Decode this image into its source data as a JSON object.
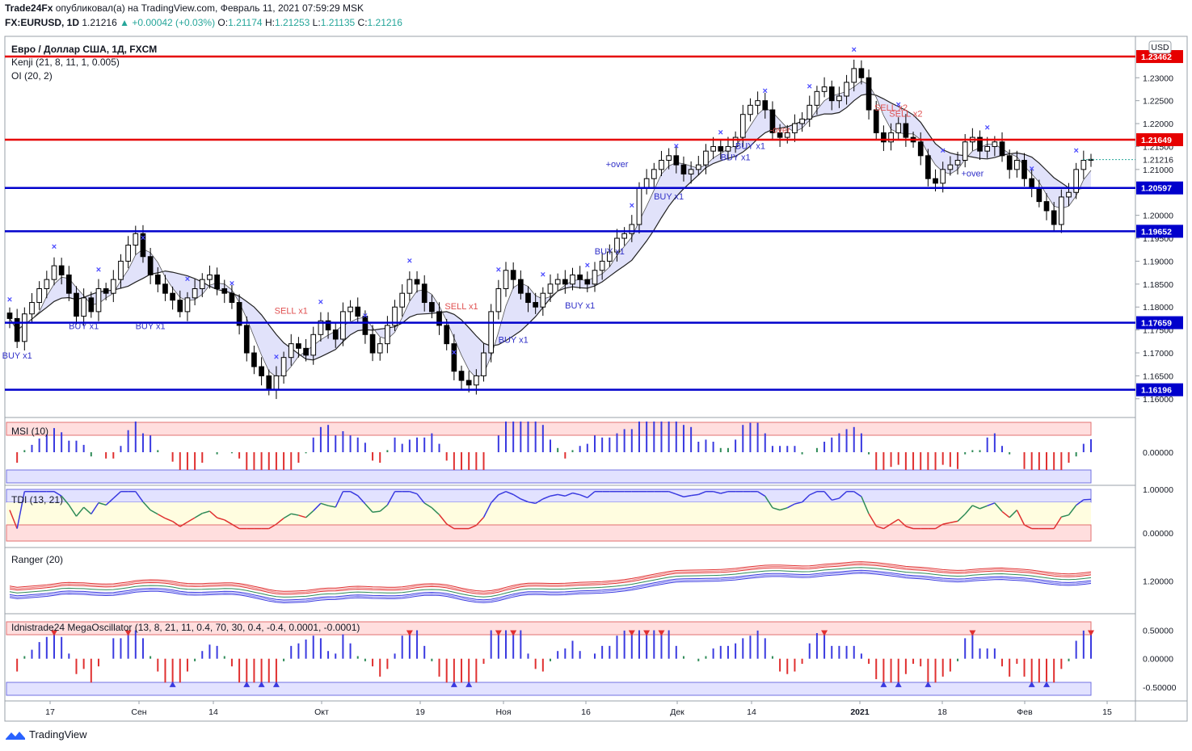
{
  "header": {
    "publisher": "Trade24Fx",
    "published_text": "опубликовал(а) на TradingView.com, Февраль 11, 2021 07:59:29 MSK",
    "symbol": "FX:EURUSD, 1D",
    "last": "1.21216",
    "change": "+0.00042 (+0.03%)",
    "o_label": "O:",
    "o_value": "1.21174",
    "h_label": "H:",
    "h_value": "1.21253",
    "l_label": "L:",
    "l_value": "1.21135",
    "c_label": "C:",
    "c_value": "1.21216"
  },
  "footer": {
    "brand": "TradingView"
  },
  "colors": {
    "red_level": "#e60000",
    "blue_level": "#0000cc",
    "up_text": "#26a69a",
    "marker": "#4b4bff"
  },
  "chart_data": [
    {
      "type": "candlestick",
      "legend": [
        "Евро / Доллар США, 1Д, FXCM",
        "Kenji (21, 8, 11, 1, 0.005)",
        "OI (20, 2)"
      ],
      "currency": "USD",
      "ylim": [
        1.1575,
        1.2385
      ],
      "yticks": [
        "1.23000",
        "1.22500",
        "1.22000",
        "1.21500",
        "1.21000",
        "1.20000",
        "1.19500",
        "1.19000",
        "1.18500",
        "1.18000",
        "1.17500",
        "1.17000",
        "1.16500",
        "1.16000"
      ],
      "x_labels": [
        "17",
        "Сен",
        "14",
        "Окт",
        "19",
        "Ноя",
        "16",
        "Дек",
        "14",
        "2021",
        "18",
        "Фев",
        "15"
      ],
      "last_price": {
        "value": 1.21216,
        "label": "1.21216"
      },
      "levels": [
        {
          "value": 1.23462,
          "label": "1.23462",
          "color": "#e60000"
        },
        {
          "value": 1.21649,
          "label": "1.21649",
          "color": "#e60000"
        },
        {
          "value": 1.20597,
          "label": "1.20597",
          "color": "#0000cc"
        },
        {
          "value": 1.19652,
          "label": "1.19652",
          "color": "#0000cc"
        },
        {
          "value": 1.17659,
          "label": "1.17659",
          "color": "#0000cc"
        },
        {
          "value": 1.16196,
          "label": "1.16196",
          "color": "#0000cc"
        }
      ],
      "closes": [
        1.1775,
        1.1725,
        1.1785,
        1.181,
        1.184,
        1.186,
        1.189,
        1.187,
        1.183,
        1.178,
        1.182,
        1.179,
        1.184,
        1.183,
        1.186,
        1.19,
        1.1935,
        1.196,
        1.191,
        1.187,
        1.185,
        1.183,
        1.1815,
        1.179,
        1.182,
        1.184,
        1.186,
        1.187,
        1.184,
        1.183,
        1.181,
        1.176,
        1.17,
        1.167,
        1.165,
        1.162,
        1.165,
        1.169,
        1.172,
        1.171,
        1.1695,
        1.174,
        1.177,
        1.175,
        1.173,
        1.179,
        1.18,
        1.178,
        1.174,
        1.17,
        1.172,
        1.176,
        1.18,
        1.183,
        1.186,
        1.185,
        1.181,
        1.179,
        1.176,
        1.172,
        1.166,
        1.164,
        1.163,
        1.165,
        1.17,
        1.179,
        1.184,
        1.188,
        1.186,
        1.183,
        1.181,
        1.18,
        1.183,
        1.185,
        1.186,
        1.185,
        1.187,
        1.186,
        1.185,
        1.188,
        1.19,
        1.192,
        1.195,
        1.196,
        1.198,
        1.206,
        1.208,
        1.21,
        1.212,
        1.213,
        1.211,
        1.209,
        1.21,
        1.211,
        1.214,
        1.215,
        1.214,
        1.215,
        1.217,
        1.222,
        1.224,
        1.225,
        1.223,
        1.218,
        1.217,
        1.218,
        1.22,
        1.221,
        1.224,
        1.227,
        1.228,
        1.225,
        1.226,
        1.229,
        1.232,
        1.23,
        1.223,
        1.218,
        1.216,
        1.218,
        1.22,
        1.217,
        1.216,
        1.213,
        1.208,
        1.207,
        1.21,
        1.211,
        1.212,
        1.216,
        1.217,
        1.214,
        1.215,
        1.216,
        1.213,
        1.21,
        1.212,
        1.208,
        1.206,
        1.203,
        1.201,
        1.198,
        1.204,
        1.205,
        1.21,
        1.212,
        1.2122
      ],
      "annotations": [
        {
          "text": "BUY x1",
          "color": "#3030c8",
          "bar": 1,
          "value": 1.1688
        },
        {
          "text": "BUY x1",
          "color": "#3030c8",
          "bar": 10,
          "value": 1.1752
        },
        {
          "text": "BUY x1",
          "color": "#3030c8",
          "bar": 19,
          "value": 1.1752
        },
        {
          "text": "SELL x1",
          "color": "#e05050",
          "bar": 38,
          "value": 1.1785
        },
        {
          "text": "SELL x1",
          "color": "#e05050",
          "bar": 61,
          "value": 1.1795
        },
        {
          "text": "BUY x1",
          "color": "#3030c8",
          "bar": 68,
          "value": 1.1722
        },
        {
          "text": "BUY x1",
          "color": "#3030c8",
          "bar": 77,
          "value": 1.1797
        },
        {
          "text": "BUY x1",
          "color": "#3030c8",
          "bar": 81,
          "value": 1.1915
        },
        {
          "text": "+over",
          "color": "#3030c8",
          "bar": 82,
          "value": 1.2105
        },
        {
          "text": "BUY x1",
          "color": "#3030c8",
          "bar": 89,
          "value": 1.2035
        },
        {
          "text": "BUY x1",
          "color": "#3030c8",
          "bar": 98,
          "value": 1.212
        },
        {
          "text": "BUY x1",
          "color": "#3030c8",
          "bar": 100,
          "value": 1.2145
        },
        {
          "text": "-over",
          "color": "#e05050",
          "bar": 104,
          "value": 1.218
        },
        {
          "text": "SELL x2",
          "color": "#e05050",
          "bar": 119,
          "value": 1.2228
        },
        {
          "text": "SELL x2",
          "color": "#e05050",
          "bar": 121,
          "value": 1.2215
        },
        {
          "text": "+over",
          "color": "#3030c8",
          "bar": 130,
          "value": 1.2085
        }
      ]
    },
    {
      "type": "bar",
      "name": "MSI (10)",
      "ylim": [
        -0.04,
        0.04
      ],
      "ytick": "0.00000"
    },
    {
      "type": "line",
      "name": "TDI (13, 21)",
      "ylim": [
        -0.2,
        1.02
      ],
      "yticks": [
        "1.00000",
        "0.00000"
      ]
    },
    {
      "type": "line",
      "name": "Ranger (20)",
      "ylim": [
        1.14,
        1.26
      ],
      "ytick": "1.20000"
    },
    {
      "type": "bar",
      "name": "Idnistrade24 MegaOscillator (13, 8, 21, 11, 0.4, 70, 30, 0.4, -0.4, 0.0001, -0.0001)",
      "ylim": [
        -0.7,
        0.72
      ],
      "yticks": [
        "0.50000",
        "0.00000",
        "-0.50000"
      ]
    }
  ]
}
